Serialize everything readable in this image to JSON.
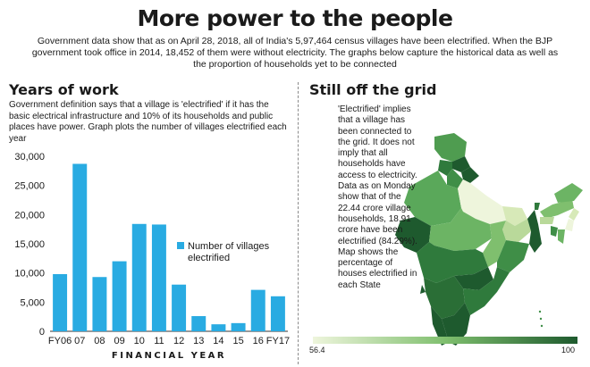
{
  "header": {
    "title": "More power to the people",
    "intro": "Government data show that as on April 28, 2018, all of India's 5,97,464 census villages have been electrified. When the BJP government took office in 2014, 18,452 of them were without electricity. The graphs below capture the historical data as well as the proportion of households yet to be connected"
  },
  "left": {
    "title": "Years of work",
    "description": "Government definition says that a village is 'electrified' if it has the basic electrical infrastructure and 10% of its households and public places have power. Graph plots the number of villages electrified each year"
  },
  "right": {
    "title": "Still off the grid",
    "description": "'Electrified' implies that a village has been connected to the grid. It does not imply that all households have access to electricity. Data as on Monday show that of the 22.44 crore village households, 18.91 crore have been electrified (84.29%). Map shows the percentage of houses electrified in each State",
    "scale_min": "56.4",
    "scale_max": "100"
  },
  "colors": {
    "bar": "#29abe2",
    "map_dark": "#1e5a2e",
    "map_light": "#eef5dc"
  },
  "chart_data": {
    "type": "bar",
    "categories": [
      "FY06",
      "07",
      "08",
      "09",
      "10",
      "11",
      "12",
      "13",
      "14",
      "15",
      "16",
      "FY17"
    ],
    "values": [
      9800,
      28700,
      9300,
      12000,
      18400,
      18300,
      8000,
      2600,
      1200,
      1400,
      7100,
      6000
    ],
    "ylim": [
      0,
      30000
    ],
    "yticks": [
      0,
      5000,
      10000,
      15000,
      20000,
      25000,
      30000
    ],
    "ytick_labels": [
      "0",
      "5,000",
      "10,000",
      "15,000",
      "20,000",
      "25,000",
      "30,000"
    ],
    "xlabel": "FINANCIAL YEAR",
    "legend": "Number of villages electrified",
    "legend_position": "center-right",
    "grid": false
  }
}
